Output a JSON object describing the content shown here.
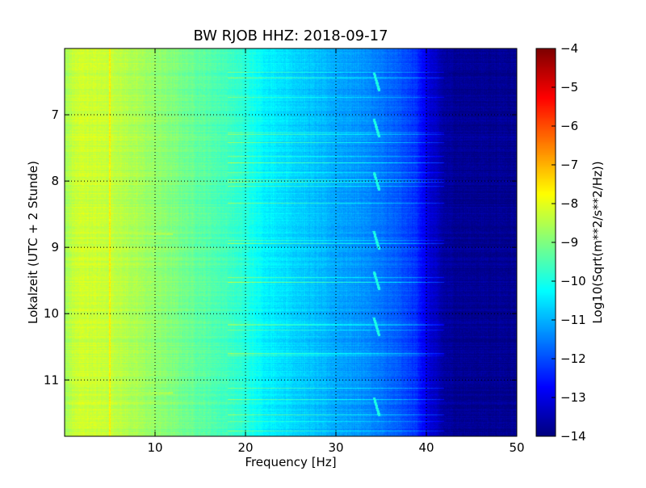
{
  "chart_data": {
    "type": "heatmap",
    "title": "BW RJOB HHZ: 2018-09-17",
    "xlabel": "Frequency [Hz]",
    "ylabel": "Lokalzeit (UTC + 2 Stunde)",
    "xlim": [
      0,
      50
    ],
    "ylim": [
      11.85,
      6.0
    ],
    "y_axis_inverted": true,
    "x_ticks": [
      10,
      20,
      30,
      40,
      50
    ],
    "y_ticks": [
      7,
      8,
      9,
      10,
      11
    ],
    "x_tick_labels": [
      "10",
      "20",
      "30",
      "40",
      "50"
    ],
    "y_tick_labels": [
      "7",
      "8",
      "9",
      "10",
      "11"
    ],
    "grid": true,
    "colormap": "jet",
    "colorbar": {
      "label": "Log10(Sqrt(m**2/s**2/Hz))",
      "range": [
        -14,
        -4
      ],
      "ticks": [
        -4,
        -5,
        -6,
        -7,
        -8,
        -9,
        -10,
        -11,
        -12,
        -13,
        -14
      ],
      "tick_labels": [
        "−4",
        "−5",
        "−6",
        "−7",
        "−8",
        "−9",
        "−10",
        "−11",
        "−12",
        "−13",
        "−14"
      ]
    },
    "frequency_profile": {
      "frequency_hz": [
        0,
        1,
        2,
        5,
        10,
        15,
        18,
        20,
        22,
        25,
        28,
        30,
        33,
        35,
        37,
        39,
        40,
        42,
        44,
        50
      ],
      "log10_amplitude": [
        -8.7,
        -8.3,
        -8.2,
        -8.3,
        -8.8,
        -9.3,
        -9.6,
        -9.9,
        -10.3,
        -10.6,
        -10.9,
        -11.1,
        -11.3,
        -11.6,
        -11.9,
        -12.3,
        -13.0,
        -13.7,
        -13.8,
        -13.8
      ]
    },
    "features": [
      {
        "kind": "vertical_line",
        "frequency_hz": 5.0,
        "log10_amplitude": -7.6
      },
      {
        "kind": "horizontal_band",
        "time_h": 8.8,
        "log10_amplitude": -8.6
      },
      {
        "kind": "horizontal_band",
        "time_h": 11.2,
        "log10_amplitude": -8.6
      },
      {
        "kind": "repeating_hook",
        "frequency_hz": 34.2,
        "times_h": [
          6.5,
          7.2,
          8.0,
          8.9,
          9.5,
          10.2,
          11.4
        ],
        "log10_amplitude": -10.0
      }
    ]
  }
}
